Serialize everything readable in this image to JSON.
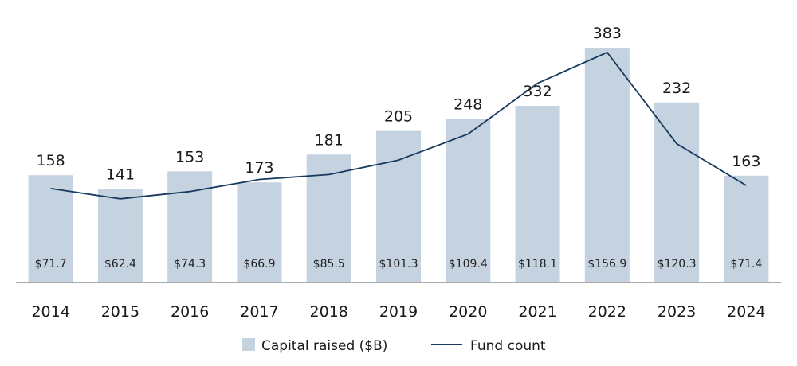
{
  "colors": {
    "bar": "#c5d2df",
    "line": "#173a5e",
    "text": "#1a1a1a"
  },
  "chart_data": {
    "type": "bar",
    "title": "",
    "xlabel": "",
    "ylabel": "",
    "categories": [
      "2014",
      "2015",
      "2016",
      "2017",
      "2018",
      "2019",
      "2020",
      "2021",
      "2022",
      "2023",
      "2024"
    ],
    "series": [
      {
        "name": "Capital raised ($B)",
        "type": "bar",
        "values": [
          71.7,
          62.4,
          74.3,
          66.9,
          85.5,
          101.3,
          109.4,
          118.1,
          156.9,
          120.3,
          71.4
        ],
        "labels": [
          "$71.7",
          "$62.4",
          "$74.3",
          "$66.9",
          "$85.5",
          "$101.3",
          "$109.4",
          "$118.1",
          "$156.9",
          "$120.3",
          "$71.4"
        ]
      },
      {
        "name": "Fund count",
        "type": "line",
        "values": [
          158,
          141,
          153,
          173,
          181,
          205,
          248,
          332,
          383,
          232,
          163
        ],
        "labels": [
          "158",
          "141",
          "153",
          "173",
          "181",
          "205",
          "248",
          "332",
          "383",
          "232",
          "163"
        ]
      }
    ],
    "legend_position": "bottom-center",
    "grid": false
  },
  "legend": {
    "bar_label": "Capital raised ($B)",
    "line_label": "Fund count"
  }
}
